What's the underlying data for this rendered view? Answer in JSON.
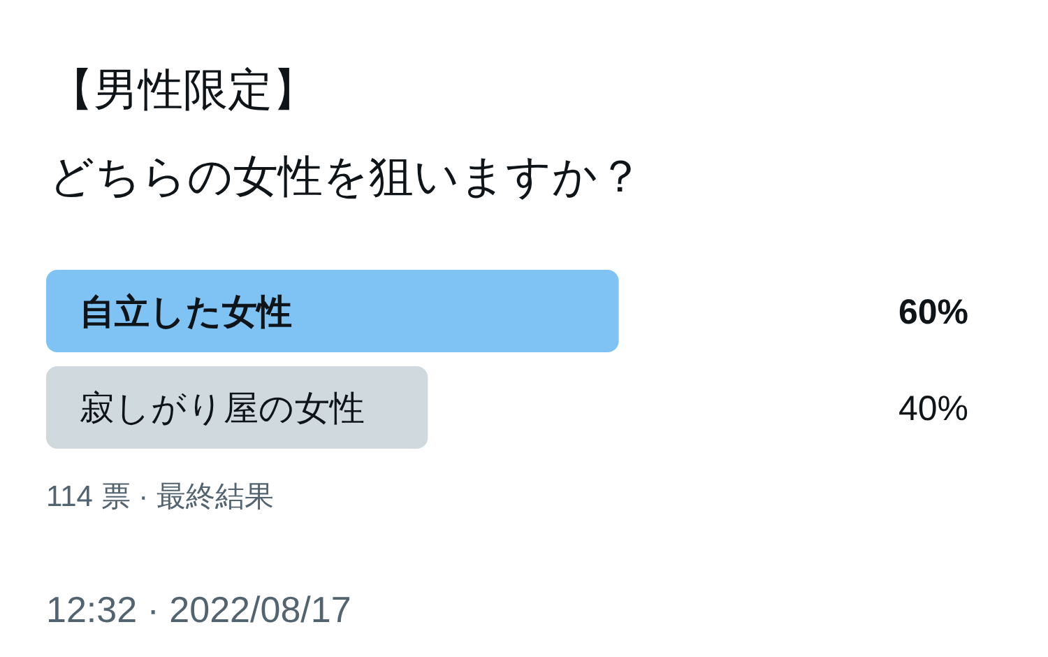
{
  "chart_data": {
    "type": "bar",
    "orientation": "horizontal",
    "title": "【男性限定】",
    "subtitle": "どちらの女性を狙いますか？",
    "categories": [
      "自立した女性",
      "寂しがり屋の女性"
    ],
    "values": [
      60,
      40
    ],
    "colors": [
      "#7fc3f5",
      "#cfd9de"
    ],
    "value_labels": [
      "60%",
      "40%"
    ],
    "annotations": [
      "114 票 · 最終結果",
      "12:32 · 2022/08/17"
    ]
  }
}
